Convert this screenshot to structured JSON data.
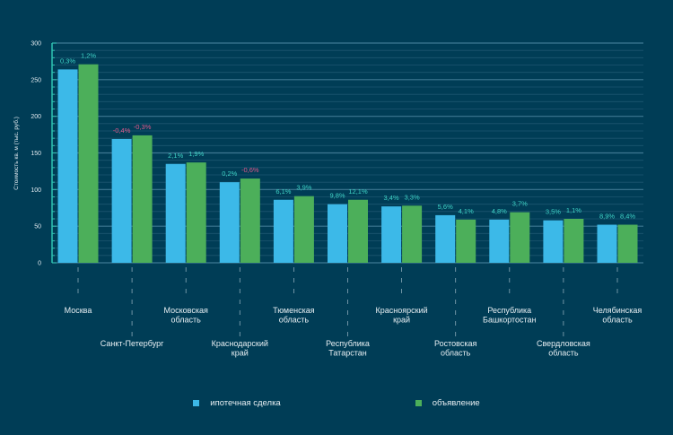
{
  "chart_data": {
    "type": "bar",
    "title": "",
    "xlabel": "",
    "ylabel": "Стоимость кв. м (тыс. руб.)",
    "ylim": [
      0,
      300
    ],
    "yticks": [
      0,
      50,
      100,
      150,
      200,
      250,
      300
    ],
    "grid": true,
    "legend_position": "bottom",
    "categories": [
      "Москва",
      "Санкт-Петербург",
      "Московская область",
      "Краснодарский край",
      "Тюменская область",
      "Республика Татарстан",
      "Красноярский край",
      "Ростовская область",
      "Республика Башкортостан",
      "Свердловская область",
      "Челябинская область"
    ],
    "category_lines": [
      [
        "Москва"
      ],
      [
        "Санкт-Петербург"
      ],
      [
        "Московская",
        "область"
      ],
      [
        "Краснодарский",
        "край"
      ],
      [
        "Тюменская",
        "область"
      ],
      [
        "Республика",
        "Татарстан"
      ],
      [
        "Красноярский",
        "край"
      ],
      [
        "Ростовская",
        "область"
      ],
      [
        "Республика",
        "Башкортостан"
      ],
      [
        "Свердловская",
        "область"
      ],
      [
        "Челябинская",
        "область"
      ]
    ],
    "series": [
      {
        "name": "ипотечная сделка",
        "color": "#3cb9e8",
        "values": [
          264,
          169,
          135,
          110,
          86,
          80,
          77,
          65,
          59,
          58,
          52
        ],
        "labels": [
          "0,3%",
          "-0,4%",
          "2,1%",
          "0,2%",
          "6,1%",
          "9,8%",
          "3,4%",
          "5,6%",
          "4,8%",
          "3,5%",
          "8,9%"
        ]
      },
      {
        "name": "объявление",
        "color": "#4caf5a",
        "values": [
          271,
          174,
          137,
          115,
          91,
          86,
          78,
          59,
          69,
          60,
          52
        ],
        "labels": [
          "1,2%",
          "-0,3%",
          "1,9%",
          "-0,6%",
          "3,9%",
          "12,1%",
          "3,3%",
          "4,1%",
          "3,7%",
          "1,1%",
          "8,4%"
        ]
      }
    ],
    "colors": {
      "positive_label": "#3fd3c6",
      "negative_label": "#e0588a",
      "axis": "#2fc4b2",
      "background": "#003d56"
    }
  },
  "legend": {
    "items": [
      {
        "label": "ипотечная сделка",
        "color": "#3cb9e8"
      },
      {
        "label": "объявление",
        "color": "#4caf5a"
      }
    ]
  }
}
